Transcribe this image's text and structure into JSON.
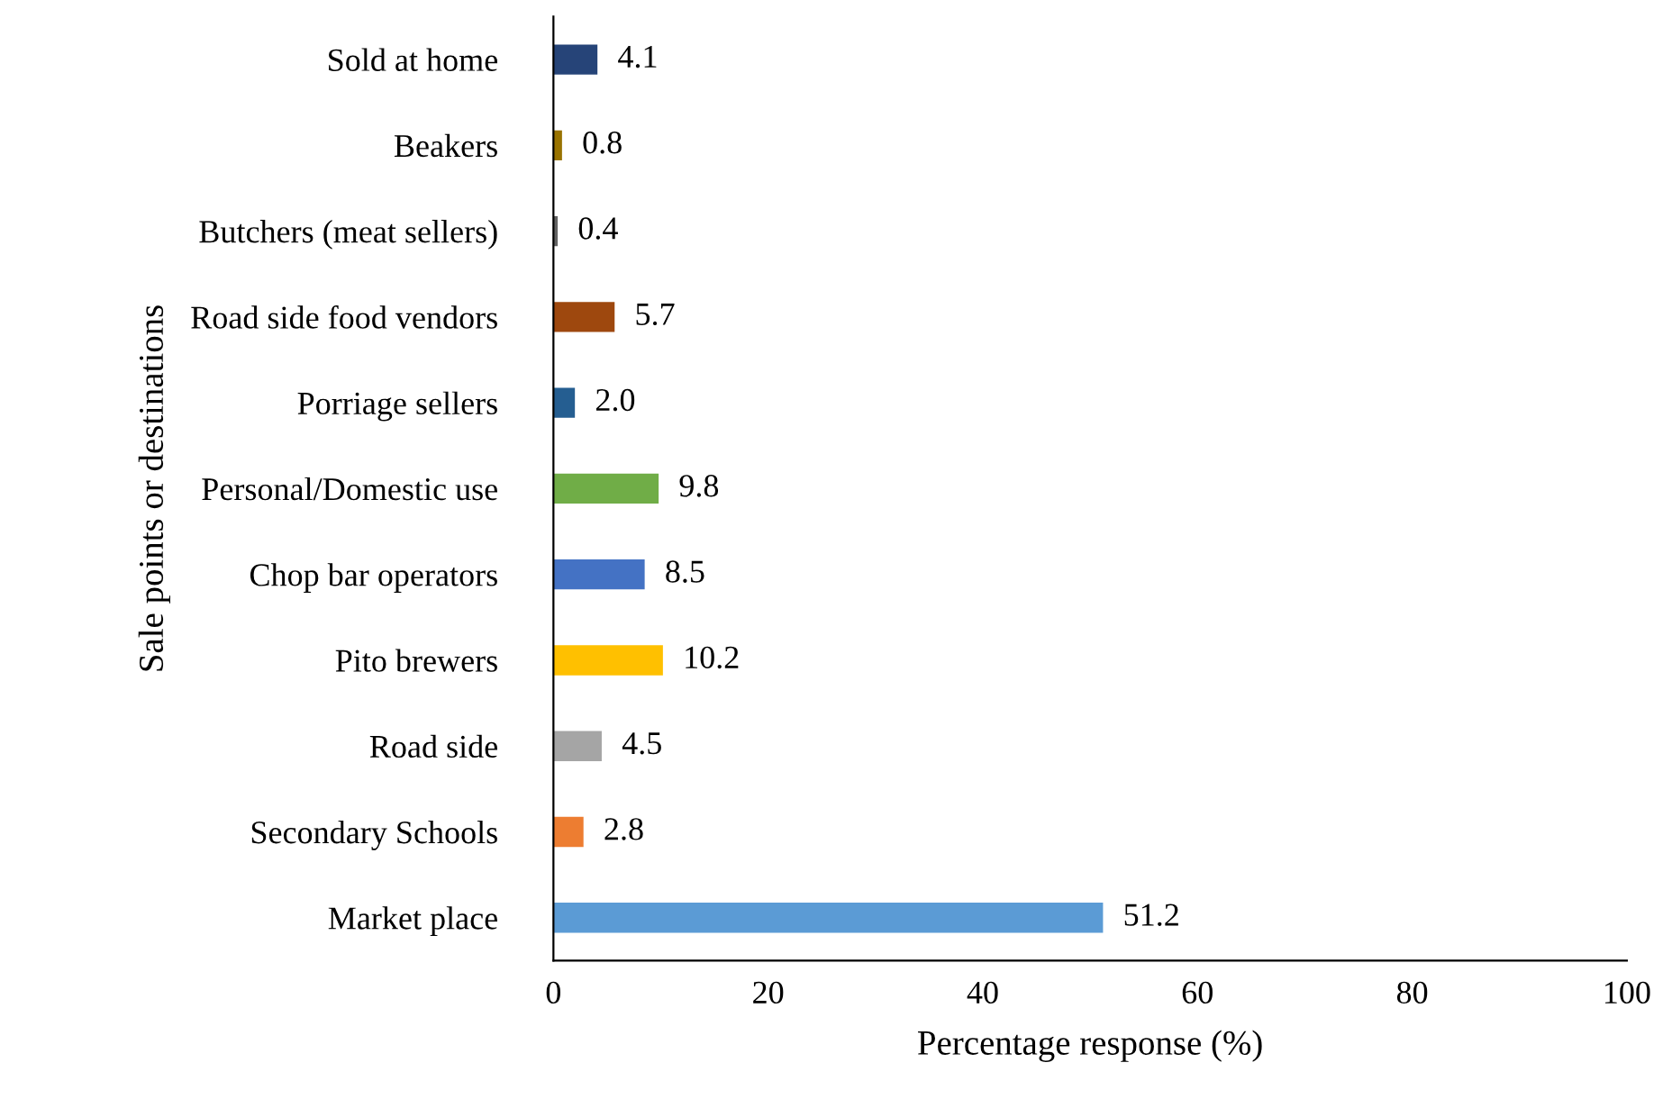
{
  "chart_data": {
    "type": "bar",
    "orientation": "horizontal",
    "categories": [
      "Sold at home",
      "Beakers",
      "Butchers (meat sellers)",
      "Road side food vendors",
      "Porriage sellers",
      "Personal/Domestic use",
      "Chop bar operators",
      "Pito brewers",
      "Road side",
      "Secondary Schools",
      "Market place"
    ],
    "values": [
      4.1,
      0.8,
      0.4,
      5.7,
      2.0,
      9.8,
      8.5,
      10.2,
      4.5,
      2.8,
      51.2
    ],
    "value_labels": [
      "4.1",
      "0.8",
      "0.4",
      "5.7",
      "2.0",
      "9.8",
      "8.5",
      "10.2",
      "4.5",
      "2.8",
      "51.2"
    ],
    "colors": [
      "#264478",
      "#997300",
      "#636363",
      "#9e480e",
      "#255e91",
      "#70ad47",
      "#4472c4",
      "#ffc000",
      "#a5a5a5",
      "#ed7d31",
      "#5b9bd5"
    ],
    "xlim": [
      0,
      100
    ],
    "xticks": [
      0,
      20,
      40,
      60,
      80,
      100
    ],
    "xlabel": "Percentage response (%)",
    "ylabel": "Sale points or destinations",
    "grid": false,
    "legend": false
  }
}
